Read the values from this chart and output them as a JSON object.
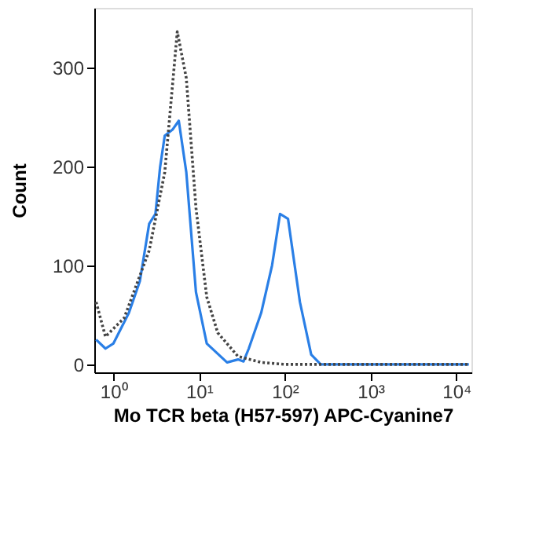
{
  "chart_data": {
    "type": "line",
    "xlabel": "Mo TCR beta (H57-597) APC-Cyanine7",
    "ylabel": "Count",
    "log": "x",
    "grid": false,
    "marker": "none",
    "xlim": [
      0.6,
      15000
    ],
    "xticks": [
      {
        "value": 1,
        "label": "10⁰"
      },
      {
        "value": 10,
        "label": "10¹"
      },
      {
        "value": 100,
        "label": "10²"
      },
      {
        "value": 1000,
        "label": "10³"
      },
      {
        "value": 10000,
        "label": "10⁴"
      }
    ],
    "ylim": [
      -8,
      360
    ],
    "yticks": [
      0,
      100,
      200,
      300
    ],
    "series": [
      {
        "color": "#444444",
        "line_style": "dotted",
        "x": [
          0.63,
          0.81,
          1.34,
          2.62,
          3.98,
          5.57,
          7.1,
          9.2,
          12.3,
          16.5,
          28.5,
          53,
          100,
          1000,
          14000
        ],
        "values": [
          63,
          28,
          47,
          115,
          194,
          336,
          289,
          158,
          68,
          32,
          8,
          2,
          0,
          0,
          0
        ]
      },
      {
        "color": "#2a7fe6",
        "line_style": "solid",
        "x": [
          0.63,
          0.81,
          1,
          1.52,
          2.04,
          2.62,
          3.1,
          3.51,
          3.98,
          4.9,
          5.8,
          7.1,
          9.2,
          12.3,
          21.2,
          28.5,
          33,
          38,
          53,
          71,
          88,
          109,
          150,
          203,
          262,
          1000,
          14000
        ],
        "values": [
          25,
          16,
          21,
          52,
          84,
          142,
          152,
          199,
          231,
          237,
          246,
          194,
          73,
          21,
          2,
          5,
          3,
          16,
          52,
          100,
          152,
          147,
          63,
          10,
          0,
          0,
          0
        ]
      }
    ]
  }
}
